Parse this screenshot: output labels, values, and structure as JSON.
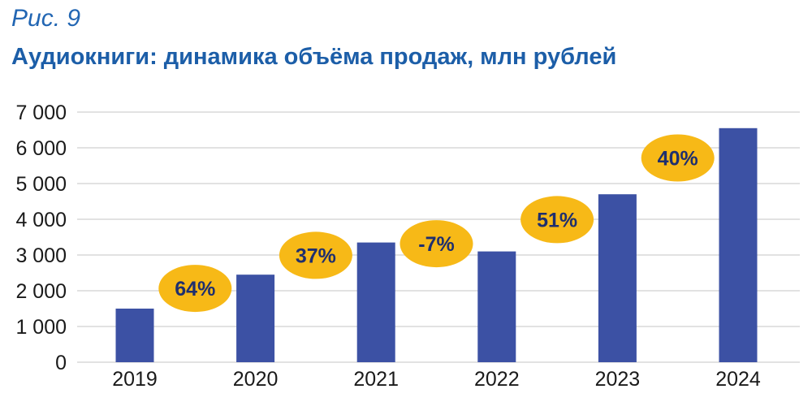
{
  "figure_label": "Рис. 9",
  "chart_data": {
    "type": "bar",
    "title": "Аудиокниги: динамика объёма продаж, млн рублей",
    "xlabel": "",
    "ylabel": "",
    "categories": [
      "2019",
      "2020",
      "2021",
      "2022",
      "2023",
      "2024"
    ],
    "values": [
      1500,
      2450,
      3350,
      3100,
      4700,
      6550
    ],
    "ylim": [
      0,
      7000
    ],
    "yticks": [
      0,
      1000,
      2000,
      3000,
      4000,
      5000,
      6000,
      7000
    ],
    "ytick_labels": [
      "0",
      "1 000",
      "2 000",
      "3 000",
      "4 000",
      "5 000",
      "6 000",
      "7 000"
    ],
    "grid": true,
    "legend": "none",
    "annotations": [
      {
        "text": "64%",
        "between": [
          "2019",
          "2020"
        ]
      },
      {
        "text": "37%",
        "between": [
          "2020",
          "2021"
        ]
      },
      {
        "text": "-7%",
        "between": [
          "2021",
          "2022"
        ]
      },
      {
        "text": "51%",
        "between": [
          "2022",
          "2023"
        ]
      },
      {
        "text": "40%",
        "between": [
          "2023",
          "2024"
        ]
      }
    ],
    "colors": {
      "bar": "#3c51a4",
      "grid": "#d9d9d9",
      "badge": "#f7b917",
      "badge_text": "#1f2f6e"
    }
  }
}
